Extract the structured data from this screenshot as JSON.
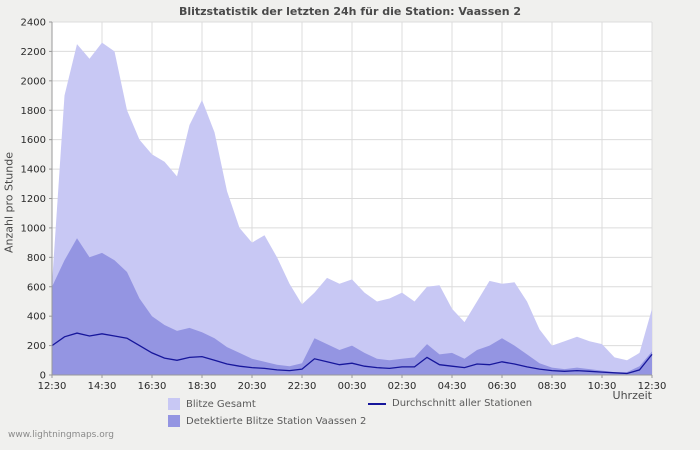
{
  "page": {
    "footer": "www.lightningmaps.org",
    "background": "#f0f0ee",
    "plot_background": "#ffffff",
    "grid_color": "#dcdcdc",
    "axis_color": "#999999"
  },
  "chart_data": {
    "type": "area",
    "title": "Blitzstatistik der letzten 24h für die Station: Vaassen 2",
    "ylabel": "Anzahl pro Stunde",
    "xlabel": "Uhrzeit",
    "ylim": [
      0,
      2400
    ],
    "y_ticks": [
      0,
      200,
      400,
      600,
      800,
      1000,
      1200,
      1400,
      1600,
      1800,
      2000,
      2200,
      2400
    ],
    "x_tick_labels": [
      "12:30",
      "14:30",
      "16:30",
      "18:30",
      "20:30",
      "22:30",
      "00:30",
      "02:30",
      "04:30",
      "06:30",
      "08:30",
      "10:30",
      "12:30"
    ],
    "x_step_minutes": 30,
    "grid": true,
    "legend_position": "bottom",
    "series": [
      {
        "name": "Blitze Gesamt",
        "type": "area",
        "color": "#c8c8f4",
        "values": [
          620,
          1900,
          2250,
          2150,
          2260,
          2200,
          1800,
          1600,
          1500,
          1450,
          1350,
          1700,
          1870,
          1650,
          1250,
          1000,
          900,
          950,
          800,
          620,
          480,
          560,
          660,
          620,
          650,
          560,
          500,
          520,
          560,
          500,
          600,
          610,
          450,
          360,
          500,
          640,
          620,
          630,
          500,
          310,
          200,
          230,
          260,
          230,
          210,
          120,
          100,
          150,
          450
        ]
      },
      {
        "name": "Detektierte Blitze Station Vaassen 2",
        "type": "area",
        "color": "#9495e2",
        "values": [
          600,
          780,
          930,
          800,
          830,
          780,
          700,
          520,
          400,
          340,
          300,
          320,
          290,
          250,
          190,
          150,
          110,
          90,
          70,
          60,
          80,
          250,
          210,
          170,
          200,
          150,
          110,
          100,
          110,
          120,
          210,
          140,
          150,
          110,
          170,
          200,
          250,
          200,
          140,
          80,
          50,
          40,
          50,
          40,
          30,
          20,
          20,
          60,
          160
        ]
      },
      {
        "name": "Durchschnitt aller Stationen",
        "type": "line",
        "color": "#16169b",
        "values": [
          200,
          260,
          285,
          265,
          280,
          265,
          250,
          200,
          150,
          115,
          100,
          120,
          125,
          100,
          75,
          60,
          50,
          45,
          35,
          30,
          40,
          110,
          90,
          70,
          80,
          60,
          50,
          45,
          55,
          55,
          120,
          70,
          60,
          50,
          75,
          70,
          90,
          75,
          55,
          40,
          30,
          25,
          30,
          25,
          20,
          15,
          10,
          35,
          140
        ]
      }
    ]
  }
}
